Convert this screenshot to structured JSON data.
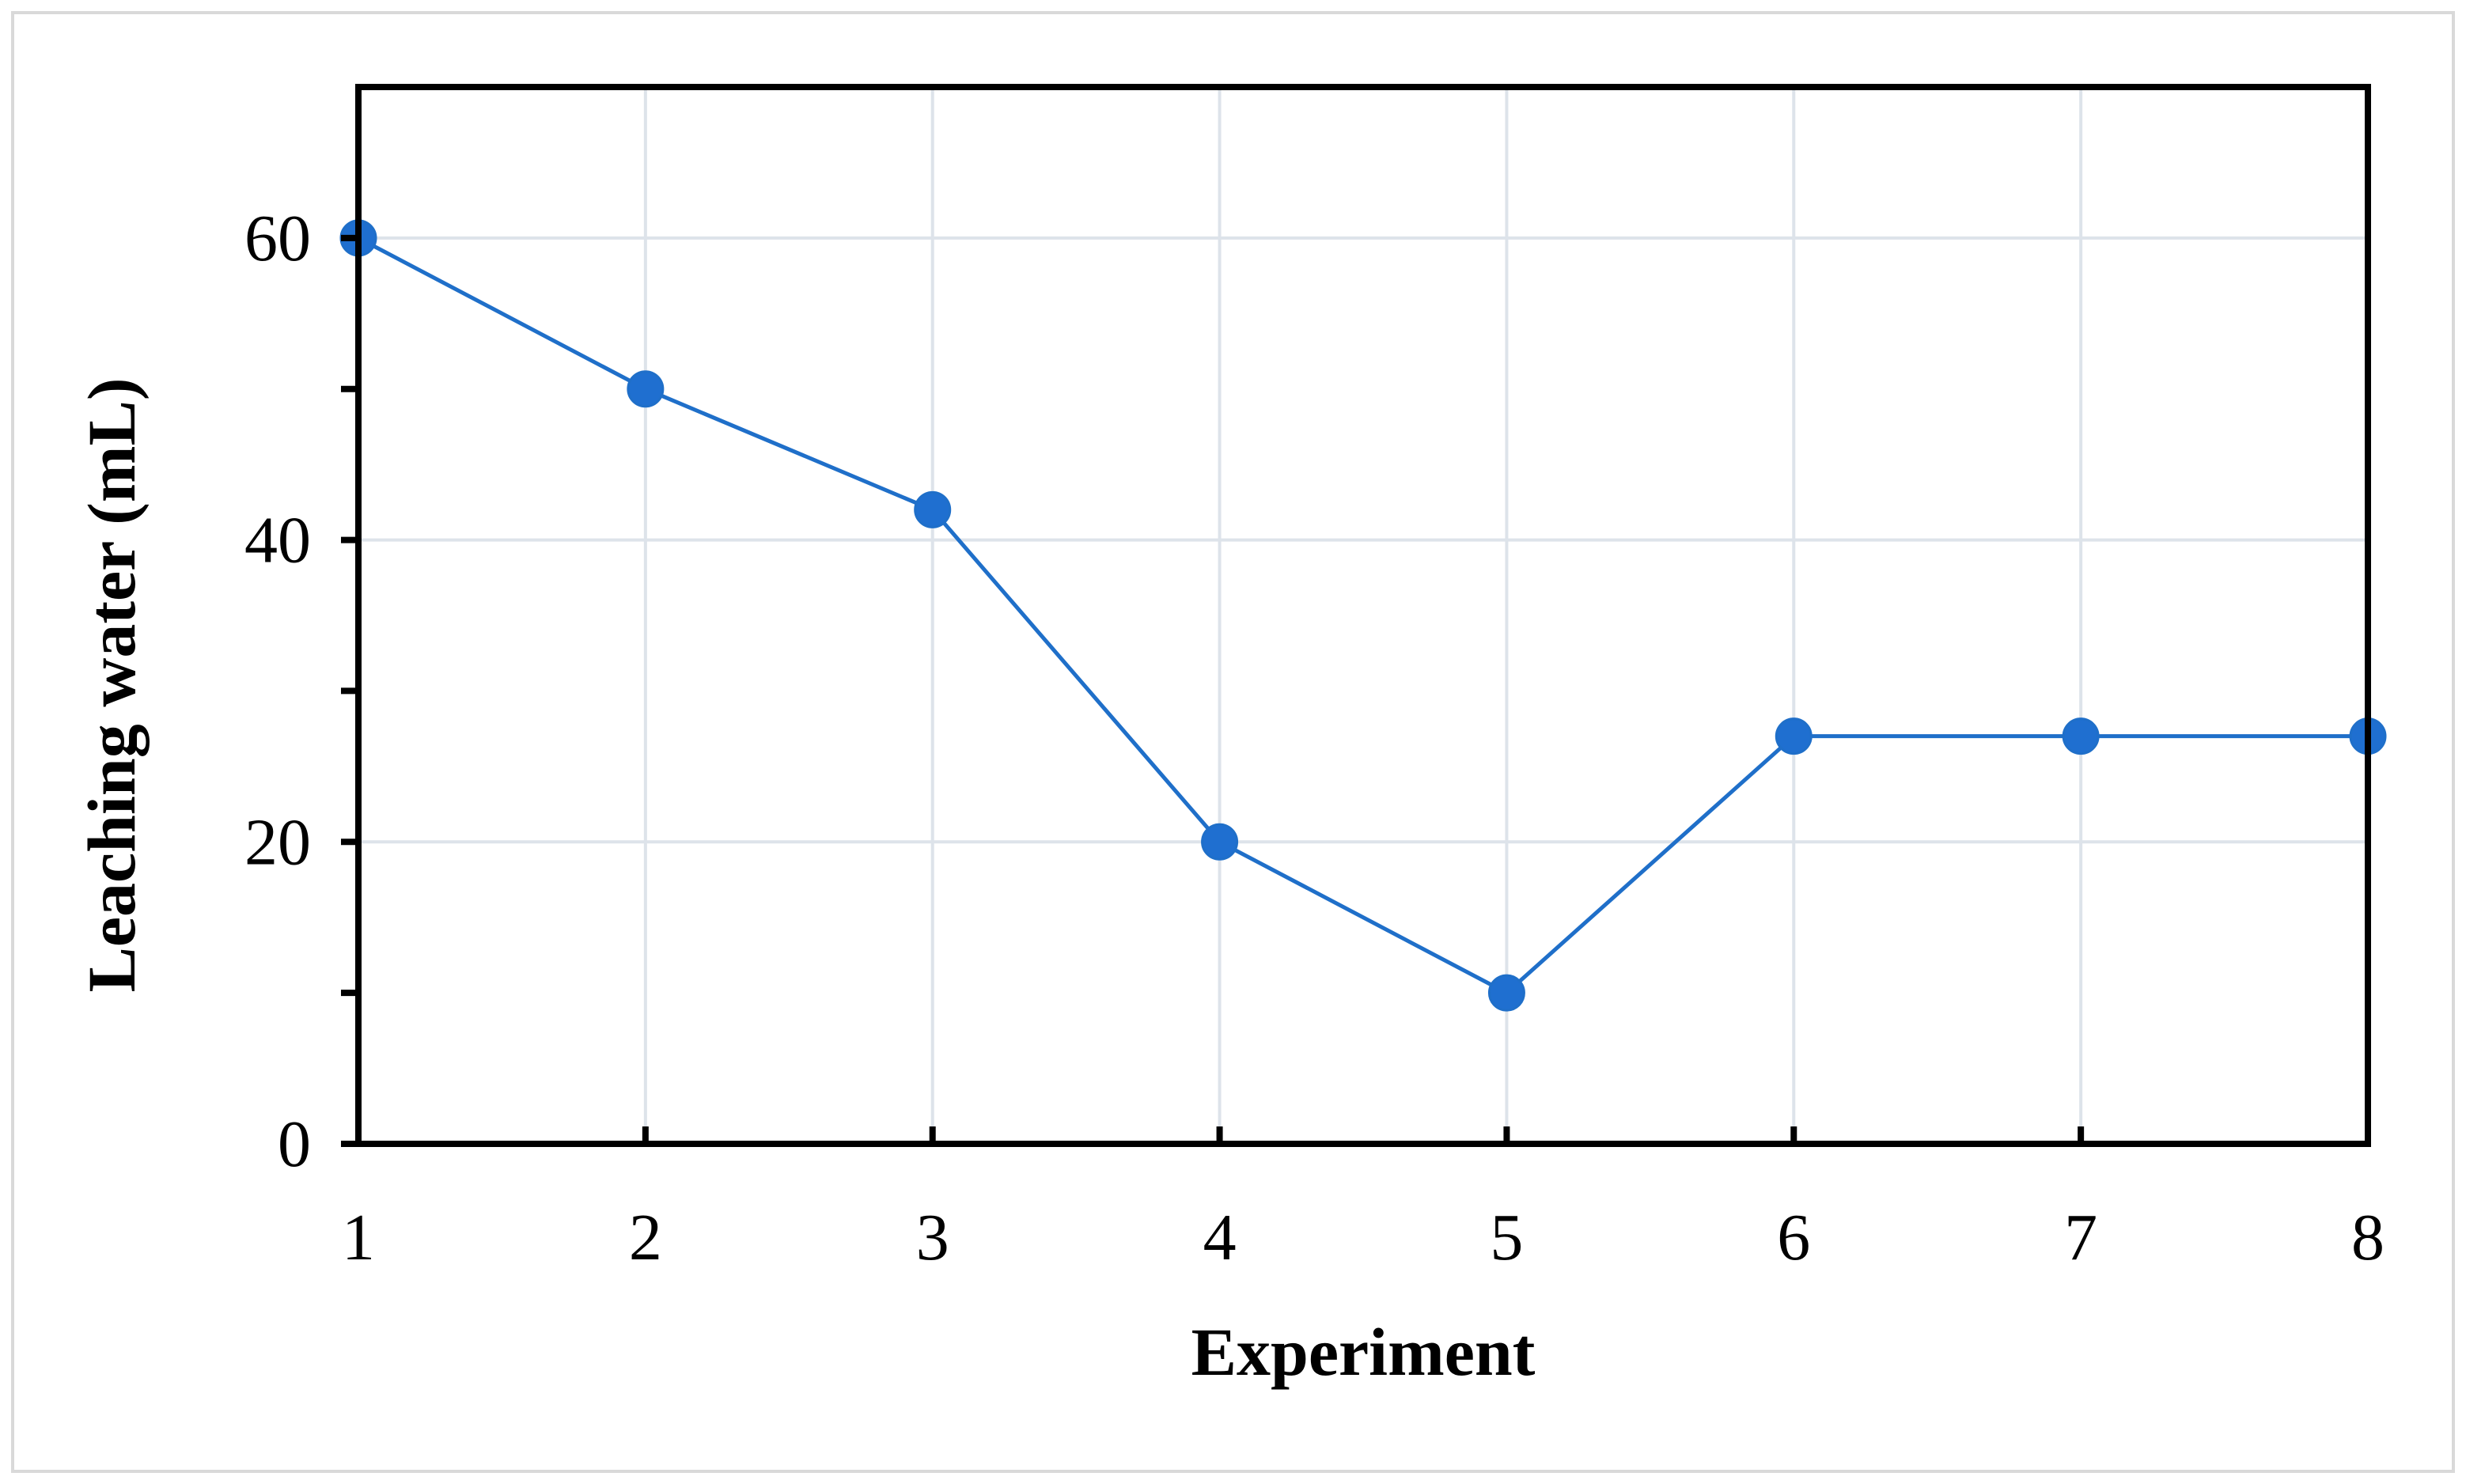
{
  "chart_data": {
    "type": "line",
    "title": "",
    "xlabel": "Experiment",
    "ylabel": "Leaching water (mL)",
    "x": [
      1,
      2,
      3,
      4,
      5,
      6,
      7,
      8
    ],
    "series": [
      {
        "values": [
          60,
          50,
          42,
          20,
          10,
          27,
          27,
          27
        ]
      }
    ],
    "xlim": [
      1,
      8
    ],
    "ylim": [
      0,
      70
    ],
    "y_major_ticks": [
      0,
      20,
      40,
      60
    ],
    "y_tick_labels": [
      "0",
      "20",
      "40",
      "60"
    ],
    "y_minor_ticks": [
      10,
      30,
      50
    ],
    "x_tick_labels": [
      "1",
      "2",
      "3",
      "4",
      "5",
      "6",
      "7",
      "8"
    ],
    "grid": true,
    "legend": "none",
    "colors": {
      "line": "#1f6fc9",
      "marker": "#1f6fd0",
      "grid": "#dde3ea",
      "axis": "#000000"
    }
  }
}
